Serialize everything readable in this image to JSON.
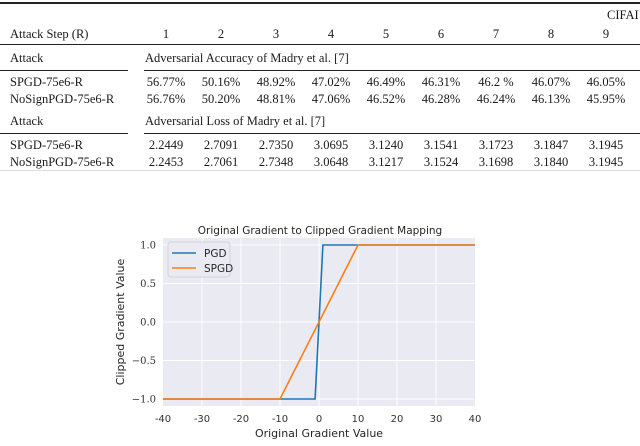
{
  "table": {
    "dataset_header": "CIFAI",
    "step_header_label": "Attack Step (R)",
    "steps": [
      "1",
      "2",
      "3",
      "4",
      "5",
      "6",
      "7",
      "8",
      "9"
    ],
    "sections": [
      {
        "attack_label": "Attack",
        "title": "Adversarial Accuracy of Madry et al. [7]",
        "rows": [
          {
            "name": "SPGD-75e6-R",
            "values": [
              "56.77%",
              "50.16%",
              "48.92%",
              "47.02%",
              "46.49%",
              "46.31%",
              "46.2 %",
              "46.07%",
              "46.05%"
            ]
          },
          {
            "name": "NoSignPGD-75e6-R",
            "values": [
              "56.76%",
              "50.20%",
              "48.81%",
              "47.06%",
              "46.52%",
              "46.28%",
              "46.24%",
              "46.13%",
              "45.95%"
            ]
          }
        ]
      },
      {
        "attack_label": "Attack",
        "title": "Adversarial Loss of Madry et al. [7]",
        "rows": [
          {
            "name": "SPGD-75e6-R",
            "values": [
              "2.2449",
              "2.7091",
              "2.7350",
              "3.0695",
              "3.1240",
              "3.1541",
              "3.1723",
              "3.1847",
              "3.1945"
            ]
          },
          {
            "name": "NoSignPGD-75e6-R",
            "values": [
              "2.2453",
              "2.7061",
              "2.7348",
              "3.0648",
              "3.1217",
              "3.1524",
              "3.1698",
              "3.1840",
              "3.1945"
            ]
          }
        ]
      }
    ]
  },
  "chart_data": {
    "type": "line",
    "title": "Original Gradient to Clipped Gradient Mapping",
    "xlabel": "Original Gradient Value",
    "ylabel": "Clipped Gradient Value",
    "xlim": [
      -40,
      40
    ],
    "ylim": [
      -1.1,
      1.1
    ],
    "xticks": [
      "-40",
      "-30",
      "-20",
      "-10",
      "0",
      "10",
      "20",
      "30",
      "40"
    ],
    "yticks": [
      "1.0",
      "0.5",
      "0.0",
      "−0.5",
      "−1.0"
    ],
    "grid": true,
    "legend_position": "upper left",
    "series": [
      {
        "name": "PGD",
        "color": "#1f77b4",
        "x": [
          -40,
          -1,
          1,
          40
        ],
        "y": [
          -1,
          -1,
          1,
          1
        ]
      },
      {
        "name": "SPGD",
        "color": "#ff7f0e",
        "x": [
          -40,
          -10,
          10,
          40
        ],
        "y": [
          -1,
          -1,
          1,
          1
        ]
      }
    ],
    "background": "#eaeaf2"
  }
}
